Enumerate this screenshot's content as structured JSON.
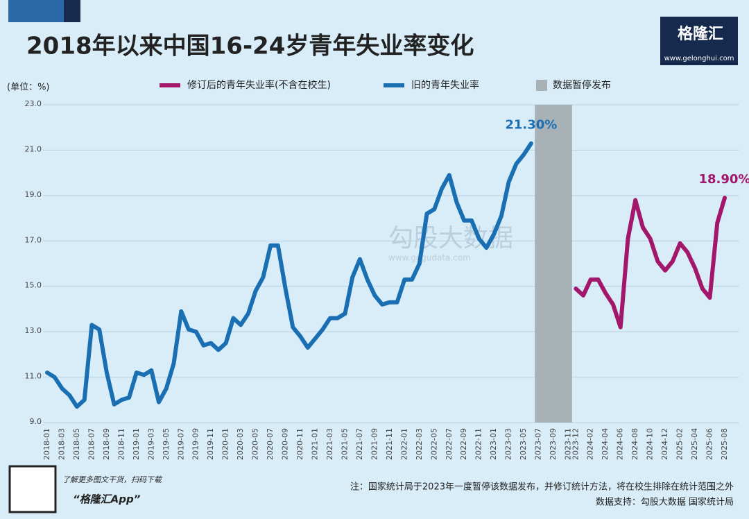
{
  "chart_data": {
    "type": "line",
    "title": "2018年以来中国16-24岁青年失业率变化",
    "unit_label": "(单位：%)",
    "brand": "格隆汇",
    "brand_url": "www.gelonghui.com",
    "watermark": "勾股大数据",
    "watermark_url": "www.gogudata.com",
    "note": "注：国家统计局于2023年一度暂停该数据发布，并修订统计方法，将在校生排除在统计范围之外",
    "source": "数据支持：勾股大数据  国家统计局",
    "qr_caption": "了解更多图文干货，扫码下载",
    "app_name": "“格隆汇App”",
    "categories": [
      "2018-01",
      null,
      "2018-03",
      null,
      "2018-05",
      null,
      "2018-07",
      null,
      "2018-09",
      null,
      "2018-11",
      null,
      "2019-01",
      null,
      "2019-03",
      null,
      "2019-05",
      null,
      "2019-07",
      null,
      "2019-09",
      null,
      "2019-11",
      null,
      "2020-01",
      null,
      "2020-03",
      null,
      "2020-05",
      null,
      "2020-07",
      null,
      "2020-09",
      null,
      "2020-11",
      null,
      "2021-01",
      null,
      "2021-03",
      null,
      "2021-05",
      null,
      "2021-07",
      null,
      "2021-09",
      null,
      "2021-11",
      null,
      "2022-01",
      null,
      "2022-03",
      null,
      "2022-05",
      null,
      "2022-07",
      null,
      "2022-09",
      null,
      "2022-11",
      null,
      "2023-01",
      null,
      "2023-03",
      null,
      "2023-05",
      null,
      "2023-07",
      null,
      "2023-09",
      null,
      "2023-11",
      "2023-12",
      null,
      "2024-02",
      null,
      "2024-04",
      null,
      "2024-06",
      null,
      "2024-08",
      null,
      "2024-10",
      null,
      "2024-12",
      null,
      "2025-02",
      null,
      "2025-04",
      null,
      "2025-06",
      null,
      "2025-08"
    ],
    "series": [
      {
        "name": "修订后的青年失业率(不含在校生)",
        "color": "#a3176b",
        "values": [
          null,
          null,
          null,
          null,
          null,
          null,
          null,
          null,
          null,
          null,
          null,
          null,
          null,
          null,
          null,
          null,
          null,
          null,
          null,
          null,
          null,
          null,
          null,
          null,
          null,
          null,
          null,
          null,
          null,
          null,
          null,
          null,
          null,
          null,
          null,
          null,
          null,
          null,
          null,
          null,
          null,
          null,
          null,
          null,
          null,
          null,
          null,
          null,
          null,
          null,
          null,
          null,
          null,
          null,
          null,
          null,
          null,
          null,
          null,
          null,
          null,
          null,
          null,
          null,
          null,
          null,
          null,
          null,
          null,
          null,
          null,
          14.9,
          14.6,
          15.3,
          15.3,
          14.7,
          14.2,
          13.2,
          17.1,
          18.8,
          17.6,
          17.1,
          16.1,
          15.7,
          16.1,
          16.9,
          16.5,
          15.8,
          14.9,
          14.5,
          17.8,
          18.9
        ],
        "value_labels": [
          null,
          null,
          null,
          null,
          null,
          null,
          null,
          null,
          null,
          null,
          null,
          null,
          null,
          null,
          null,
          null,
          null,
          null,
          null,
          null,
          null,
          null,
          null,
          null,
          null,
          null,
          null,
          null,
          null,
          null,
          null,
          null,
          null,
          null,
          null,
          null,
          null,
          null,
          null,
          null,
          null,
          null,
          null,
          null,
          null,
          null,
          null,
          null,
          null,
          null,
          null,
          null,
          null,
          null,
          null,
          null,
          null,
          null,
          null,
          null,
          null,
          null,
          null,
          null,
          null,
          null,
          null,
          null,
          null,
          null,
          null,
          null,
          null,
          null,
          null,
          null,
          null,
          null,
          null,
          null,
          null,
          null,
          null,
          null,
          null,
          null,
          null,
          null,
          null,
          null,
          null,
          "18.90%"
        ]
      },
      {
        "name": "旧的青年失业率",
        "color": "#1a6fb3",
        "values": [
          11.2,
          11.0,
          10.5,
          10.2,
          9.7,
          10.0,
          13.3,
          13.1,
          11.2,
          9.8,
          10.0,
          10.1,
          11.2,
          11.1,
          11.3,
          9.9,
          10.5,
          11.6,
          13.9,
          13.1,
          13.0,
          12.4,
          12.5,
          12.2,
          12.5,
          13.6,
          13.3,
          13.8,
          14.8,
          15.4,
          16.8,
          16.8,
          14.9,
          13.2,
          12.8,
          12.3,
          12.7,
          13.1,
          13.6,
          13.6,
          13.8,
          15.4,
          16.2,
          15.3,
          14.6,
          14.2,
          14.3,
          14.3,
          15.3,
          15.3,
          16.0,
          18.2,
          18.4,
          19.3,
          19.9,
          18.7,
          17.9,
          17.9,
          17.1,
          16.7,
          17.3,
          18.1,
          19.6,
          20.4,
          20.8,
          21.3,
          null,
          null,
          null,
          null,
          null,
          null,
          null,
          null,
          null,
          null,
          null,
          null,
          null,
          null,
          null,
          null,
          null,
          null,
          null,
          null,
          null,
          null,
          null,
          null,
          null,
          null
        ],
        "value_labels": [
          null,
          null,
          null,
          null,
          null,
          null,
          null,
          null,
          null,
          null,
          null,
          null,
          null,
          null,
          null,
          null,
          null,
          null,
          null,
          null,
          null,
          null,
          null,
          null,
          null,
          null,
          null,
          null,
          null,
          null,
          null,
          null,
          null,
          null,
          null,
          null,
          null,
          null,
          null,
          null,
          null,
          null,
          null,
          null,
          null,
          null,
          null,
          null,
          null,
          null,
          null,
          null,
          null,
          null,
          null,
          null,
          null,
          null,
          null,
          null,
          null,
          null,
          null,
          null,
          null,
          "21.30%",
          null,
          null,
          null,
          null,
          null,
          null,
          null,
          null,
          null,
          null,
          null,
          null,
          null,
          null,
          null,
          null,
          null,
          null,
          null,
          null,
          null,
          null,
          null,
          null,
          null,
          null
        ]
      }
    ],
    "shaded": {
      "name": "数据暂停发布",
      "color": "#a8b2b6",
      "from": "2023-07",
      "to": "2023-11"
    },
    "ylim": [
      9,
      23
    ],
    "yticks": [
      {
        "value": 9,
        "label": "9.0"
      },
      {
        "value": 11,
        "label": "11.0"
      },
      {
        "value": 13,
        "label": "13.0"
      },
      {
        "value": 15,
        "label": "15.0"
      },
      {
        "value": 17,
        "label": "17.0"
      },
      {
        "value": 19,
        "label": "19.0"
      },
      {
        "value": 21,
        "label": "21.0"
      },
      {
        "value": 23,
        "label": "23.0"
      }
    ],
    "grid": true
  }
}
